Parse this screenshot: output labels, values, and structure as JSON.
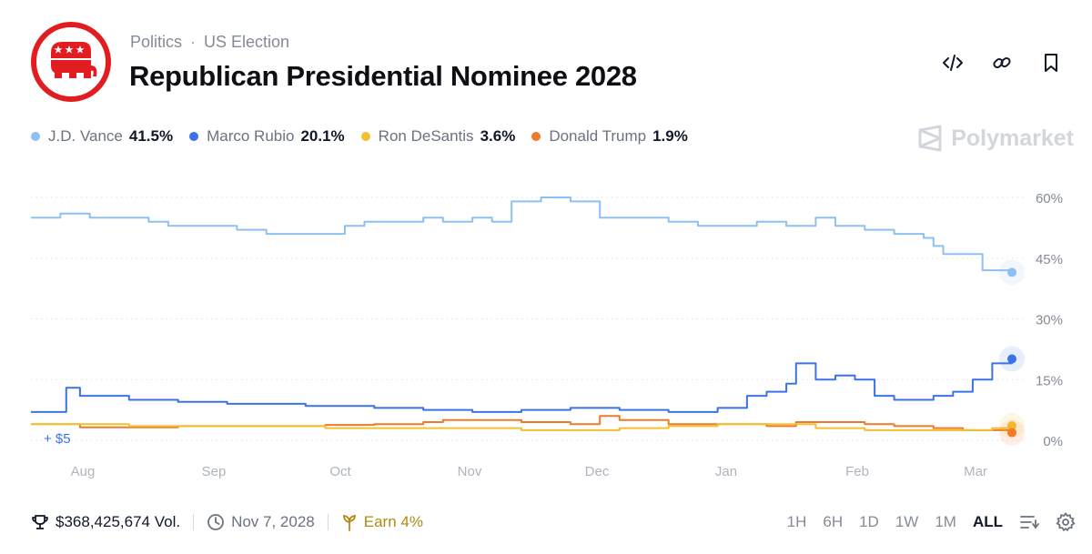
{
  "header": {
    "category": "Politics",
    "separator": "·",
    "subcategory": "US Election",
    "title": "Republican Presidential Nominee 2028",
    "logo_color": "#e11d21"
  },
  "legend": [
    {
      "name": "J.D. Vance",
      "value": "41.5%",
      "color": "#8ec0f2"
    },
    {
      "name": "Marco Rubio",
      "value": "20.1%",
      "color": "#3b73e6"
    },
    {
      "name": "Ron DeSantis",
      "value": "3.6%",
      "color": "#f2c12e"
    },
    {
      "name": "Donald Trump",
      "value": "1.9%",
      "color": "#ee7a2a"
    }
  ],
  "brand": {
    "name": "Polymarket"
  },
  "chart_data": {
    "type": "line",
    "x_ticks": [
      "Aug",
      "Sep",
      "Oct",
      "Nov",
      "Dec",
      "Jan",
      "Feb",
      "Mar"
    ],
    "y_ticks": [
      "60%",
      "45%",
      "30%",
      "15%",
      "0%"
    ],
    "ylim": [
      0,
      60
    ],
    "annotation": "+ $5",
    "grid": true,
    "series": [
      {
        "name": "J.D. Vance",
        "color": "#8ec0f2",
        "x": [
          0,
          0.02,
          0.03,
          0.06,
          0.12,
          0.14,
          0.17,
          0.21,
          0.24,
          0.3,
          0.32,
          0.34,
          0.4,
          0.42,
          0.45,
          0.47,
          0.49,
          0.52,
          0.55,
          0.58,
          0.62,
          0.65,
          0.68,
          0.71,
          0.74,
          0.77,
          0.8,
          0.82,
          0.85,
          0.88,
          0.91,
          0.92,
          0.93,
          0.97,
          1.0
        ],
        "y": [
          55,
          55,
          56,
          55,
          54,
          53,
          53,
          52,
          51,
          51,
          53,
          54,
          55,
          54,
          55,
          54,
          59,
          60,
          59,
          55,
          55,
          54,
          53,
          53,
          54,
          53,
          55,
          53,
          52,
          51,
          50,
          48,
          46,
          42,
          41.5
        ]
      },
      {
        "name": "Marco Rubio",
        "color": "#3b73e6",
        "x": [
          0,
          0.03,
          0.036,
          0.05,
          0.1,
          0.15,
          0.2,
          0.28,
          0.35,
          0.4,
          0.45,
          0.5,
          0.55,
          0.6,
          0.65,
          0.7,
          0.73,
          0.75,
          0.77,
          0.78,
          0.8,
          0.82,
          0.84,
          0.86,
          0.88,
          0.9,
          0.92,
          0.94,
          0.96,
          0.98,
          1.0
        ],
        "y": [
          7,
          7,
          13,
          11,
          10,
          9.5,
          9,
          8.5,
          8,
          7.5,
          7,
          7.5,
          8,
          7.5,
          7,
          8,
          11,
          12,
          14,
          19,
          15,
          16,
          15,
          11,
          10,
          10,
          11,
          12,
          15,
          19,
          20.1
        ]
      },
      {
        "name": "Ron DeSantis",
        "color": "#f2c12e",
        "x": [
          0,
          0.05,
          0.1,
          0.15,
          0.2,
          0.25,
          0.3,
          0.35,
          0.4,
          0.45,
          0.5,
          0.55,
          0.6,
          0.65,
          0.7,
          0.75,
          0.8,
          0.85,
          0.9,
          0.95,
          0.98,
          1.0
        ],
        "y": [
          4,
          4,
          3.5,
          3.5,
          3.5,
          3.5,
          3,
          3,
          3,
          3,
          2.5,
          2.5,
          3,
          3.5,
          4,
          4,
          3,
          2.5,
          2.5,
          2.5,
          3,
          3.6
        ]
      },
      {
        "name": "Donald Trump",
        "color": "#ee7a2a",
        "x": [
          0,
          0.04,
          0.05,
          0.1,
          0.15,
          0.2,
          0.25,
          0.3,
          0.35,
          0.4,
          0.42,
          0.45,
          0.5,
          0.55,
          0.58,
          0.6,
          0.63,
          0.65,
          0.7,
          0.75,
          0.78,
          0.8,
          0.85,
          0.88,
          0.92,
          0.95,
          1.0
        ],
        "y": [
          4,
          4,
          3.2,
          3.2,
          3.5,
          3.5,
          3.5,
          3.8,
          4,
          4.5,
          5,
          5,
          4.5,
          4,
          6,
          5,
          5,
          4,
          4,
          3.5,
          4.5,
          4.5,
          4,
          3.5,
          3,
          2.5,
          1.9
        ]
      }
    ]
  },
  "footer": {
    "volume": "$368,425,674 Vol.",
    "end_date": "Nov 7, 2028",
    "earn": "Earn 4%",
    "ranges": [
      "1H",
      "6H",
      "1D",
      "1W",
      "1M",
      "ALL"
    ],
    "active_range": "ALL"
  }
}
